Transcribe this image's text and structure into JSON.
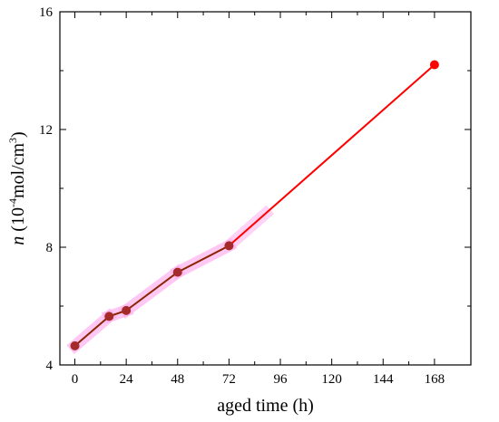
{
  "chart_data": {
    "type": "line",
    "xlabel": "aged time (h)",
    "ylabel": {
      "symbol": "n",
      "open": " (10",
      "exp1": "-4",
      "mid": "mol/cm",
      "exp2": "3",
      "close": ")"
    },
    "xlim": [
      -7,
      185
    ],
    "ylim": [
      4,
      16
    ],
    "xticks": [
      0,
      24,
      48,
      72,
      96,
      120,
      144,
      168
    ],
    "yticks": [
      4,
      8,
      12,
      16
    ],
    "grid": false,
    "colors": {
      "line_main": "#8B2500",
      "line_extrap": "#FF0000",
      "marker_main": "#A52A2A",
      "marker_extrap": "#FF0000",
      "highlight": "#FFB6F0"
    },
    "series": [
      {
        "x": [
          0,
          16,
          24,
          48,
          72,
          168
        ],
        "y": [
          4.65,
          5.65,
          5.85,
          7.15,
          8.05,
          14.2
        ]
      }
    ]
  }
}
